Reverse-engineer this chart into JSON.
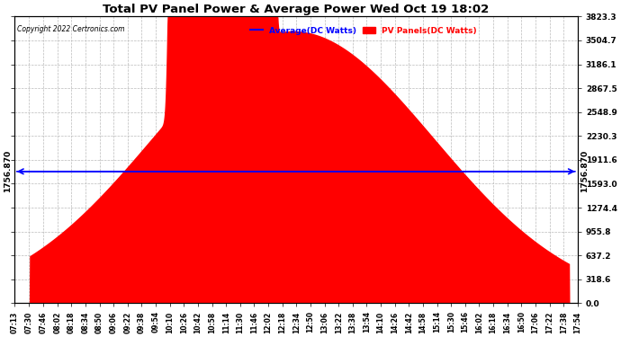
{
  "title": "Total PV Panel Power & Average Power Wed Oct 19 18:02",
  "copyright": "Copyright 2022 Certronics.com",
  "legend_avg": "Average(DC Watts)",
  "legend_pv": "PV Panels(DC Watts)",
  "average_value": 1756.87,
  "y_max": 3823.3,
  "y_min": 0.0,
  "y_ticks": [
    0.0,
    318.6,
    637.2,
    955.8,
    1274.4,
    1593.0,
    1911.6,
    2230.3,
    2548.9,
    2867.5,
    3186.1,
    3504.7,
    3823.3
  ],
  "background_color": "#ffffff",
  "fill_color": "#ff0000",
  "avg_line_color": "#0000ff",
  "grid_color": "#bbbbbb",
  "x_labels": [
    "07:13",
    "07:30",
    "07:46",
    "08:02",
    "08:18",
    "08:34",
    "08:50",
    "09:06",
    "09:22",
    "09:38",
    "09:54",
    "10:10",
    "10:26",
    "10:42",
    "10:58",
    "11:14",
    "11:30",
    "11:46",
    "12:02",
    "12:18",
    "12:34",
    "12:50",
    "13:06",
    "13:22",
    "13:38",
    "13:54",
    "14:10",
    "14:26",
    "14:42",
    "14:58",
    "15:14",
    "15:30",
    "15:46",
    "16:02",
    "16:18",
    "16:34",
    "16:50",
    "17:06",
    "17:22",
    "17:38",
    "17:54"
  ]
}
